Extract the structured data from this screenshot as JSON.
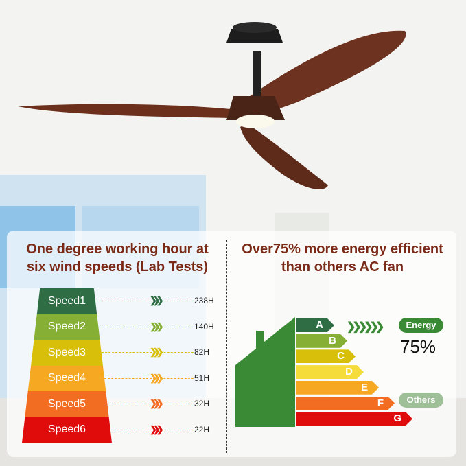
{
  "left_panel": {
    "title_line1": "One degree working hour at",
    "title_line2": "six wind speeds (Lab Tests)",
    "speeds": [
      {
        "label": "Speed1",
        "hours": "238H",
        "color": "#2f6e45"
      },
      {
        "label": "Speed2",
        "hours": "140H",
        "color": "#86b035"
      },
      {
        "label": "Speed3",
        "hours": "82H",
        "color": "#d8c00a"
      },
      {
        "label": "Speed4",
        "hours": "51H",
        "color": "#f7a823"
      },
      {
        "label": "Speed5",
        "hours": "32H",
        "color": "#f26c22"
      },
      {
        "label": "Speed6",
        "hours": "22H",
        "color": "#e00c0c"
      }
    ]
  },
  "right_panel": {
    "title_line1": "Over75% more energy efficient",
    "title_line2": "than others AC fan",
    "grades": [
      {
        "label": "A",
        "color": "#2f6e45"
      },
      {
        "label": "B",
        "color": "#86b035"
      },
      {
        "label": "C",
        "color": "#d8c00a"
      },
      {
        "label": "D",
        "color": "#f5dc3a"
      },
      {
        "label": "E",
        "color": "#f7a823"
      },
      {
        "label": "F",
        "color": "#f26c22"
      },
      {
        "label": "G",
        "color": "#e00c0c"
      }
    ],
    "energy_badge": "Energy",
    "energy_value": "75%",
    "others_badge": "Others",
    "house_color": "#3a8a35"
  }
}
